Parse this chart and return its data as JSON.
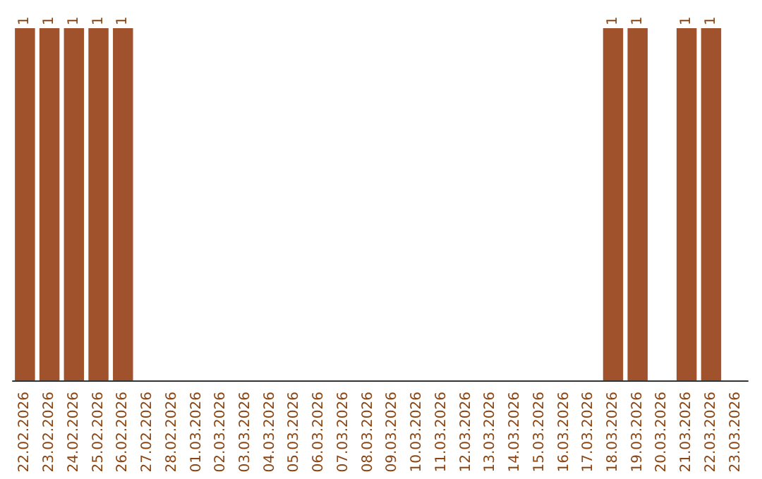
{
  "chart_data": {
    "type": "bar",
    "categories": [
      "22.02.2026",
      "23.02.2026",
      "24.02.2026",
      "25.02.2026",
      "26.02.2026",
      "27.02.2026",
      "28.02.2026",
      "01.03.2026",
      "02.03.2026",
      "03.03.2026",
      "04.03.2026",
      "05.03.2026",
      "06.03.2026",
      "07.03.2026",
      "08.03.2026",
      "09.03.2026",
      "10.03.2026",
      "11.03.2026",
      "12.03.2026",
      "13.03.2026",
      "14.03.2026",
      "15.03.2026",
      "16.03.2026",
      "17.03.2026",
      "18.03.2026",
      "19.03.2026",
      "20.03.2026",
      "21.03.2026",
      "22.03.2026",
      "23.03.2026"
    ],
    "values": [
      1,
      1,
      1,
      1,
      1,
      0,
      0,
      0,
      0,
      0,
      0,
      0,
      0,
      0,
      0,
      0,
      0,
      0,
      0,
      0,
      0,
      0,
      0,
      0,
      1,
      1,
      0,
      1,
      1,
      0
    ],
    "value_labels": [
      "1",
      "1",
      "1",
      "1",
      "1",
      null,
      null,
      null,
      null,
      null,
      null,
      null,
      null,
      null,
      null,
      null,
      null,
      null,
      null,
      null,
      null,
      null,
      null,
      null,
      "1",
      "1",
      null,
      "1",
      "1",
      null
    ],
    "color": "#a0522d",
    "tick_labels": "x"
  }
}
